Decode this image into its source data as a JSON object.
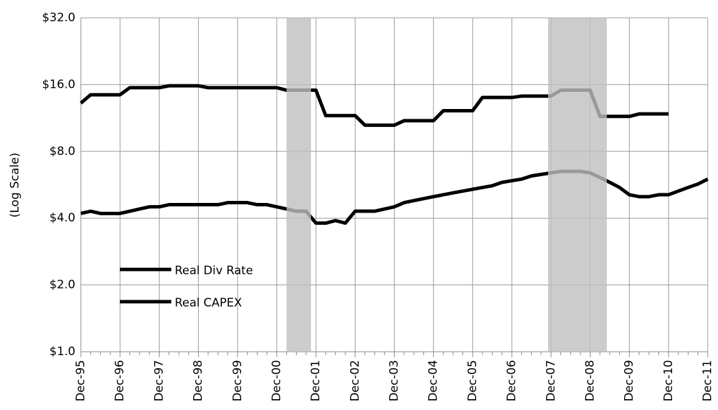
{
  "chart_data": {
    "type": "line",
    "y_label": "(Log Scale)",
    "log_scale": true,
    "log_base": 2,
    "grid": true,
    "legend": "lower left",
    "ylim": [
      1,
      32
    ],
    "yticks": [
      {
        "value": 1,
        "label": "$1.0"
      },
      {
        "value": 2,
        "label": "$2.0"
      },
      {
        "value": 4,
        "label": "$4.0"
      },
      {
        "value": 8,
        "label": "$8.0"
      },
      {
        "value": 16,
        "label": "$16.0"
      },
      {
        "value": 32,
        "label": "$32.0"
      }
    ],
    "categories": [
      "Dec-95",
      null,
      null,
      null,
      "Dec-96",
      null,
      null,
      null,
      "Dec-97",
      null,
      null,
      null,
      "Dec-98",
      null,
      null,
      null,
      "Dec-99",
      null,
      null,
      null,
      "Dec-00",
      null,
      null,
      null,
      "Dec-01",
      null,
      null,
      null,
      "Dec-02",
      null,
      null,
      null,
      "Dec-03",
      null,
      null,
      null,
      "Dec-04",
      null,
      null,
      null,
      "Dec-05",
      null,
      null,
      null,
      "Dec-06",
      null,
      null,
      null,
      "Dec-07",
      null,
      null,
      null,
      "Dec-08",
      null,
      null,
      null,
      "Dec-09",
      null,
      null,
      null,
      "Dec-10",
      null,
      null,
      null,
      "Dec-11"
    ],
    "shaded_spans": [
      {
        "start": 21,
        "end": 23.5,
        "color": "#bfbfbf"
      },
      {
        "start": 47.7,
        "end": 53.7,
        "color": "#bfbfbf"
      }
    ],
    "series": [
      {
        "name": "Real Div Rate",
        "color": "#000000",
        "values": [
          13.2,
          14.4,
          14.4,
          14.4,
          14.4,
          15.5,
          15.5,
          15.5,
          15.5,
          15.8,
          15.8,
          15.8,
          15.8,
          15.5,
          15.5,
          15.5,
          15.5,
          15.5,
          15.5,
          15.5,
          15.5,
          15.1,
          15.1,
          15.1,
          15.1,
          11.6,
          11.6,
          11.6,
          11.6,
          10.5,
          10.5,
          10.5,
          10.5,
          11.0,
          11.0,
          11.0,
          11.0,
          12.2,
          12.2,
          12.2,
          12.2,
          14.0,
          14.0,
          14.0,
          14.0,
          14.2,
          14.2,
          14.2,
          14.2,
          15.1,
          15.1,
          15.1,
          15.1,
          11.5,
          11.5,
          11.5,
          11.5,
          11.8,
          11.8,
          11.8,
          11.8,
          null,
          null,
          null,
          null
        ]
      },
      {
        "name": "Real CAPEX",
        "color": "#000000",
        "values": [
          4.2,
          4.3,
          4.2,
          4.2,
          4.2,
          4.3,
          4.4,
          4.5,
          4.5,
          4.6,
          4.6,
          4.6,
          4.6,
          4.6,
          4.6,
          4.7,
          4.7,
          4.7,
          4.6,
          4.6,
          4.5,
          4.4,
          4.3,
          4.3,
          3.8,
          3.8,
          3.9,
          3.8,
          4.3,
          4.3,
          4.3,
          4.4,
          4.5,
          4.7,
          4.8,
          4.9,
          5.0,
          5.1,
          5.2,
          5.3,
          5.4,
          5.5,
          5.6,
          5.8,
          5.9,
          6.0,
          6.2,
          6.3,
          6.4,
          6.5,
          6.5,
          6.5,
          6.4,
          6.1,
          5.8,
          5.5,
          5.1,
          5.0,
          5.0,
          5.1,
          5.1,
          5.3,
          5.5,
          5.7,
          6.0
        ]
      }
    ]
  }
}
